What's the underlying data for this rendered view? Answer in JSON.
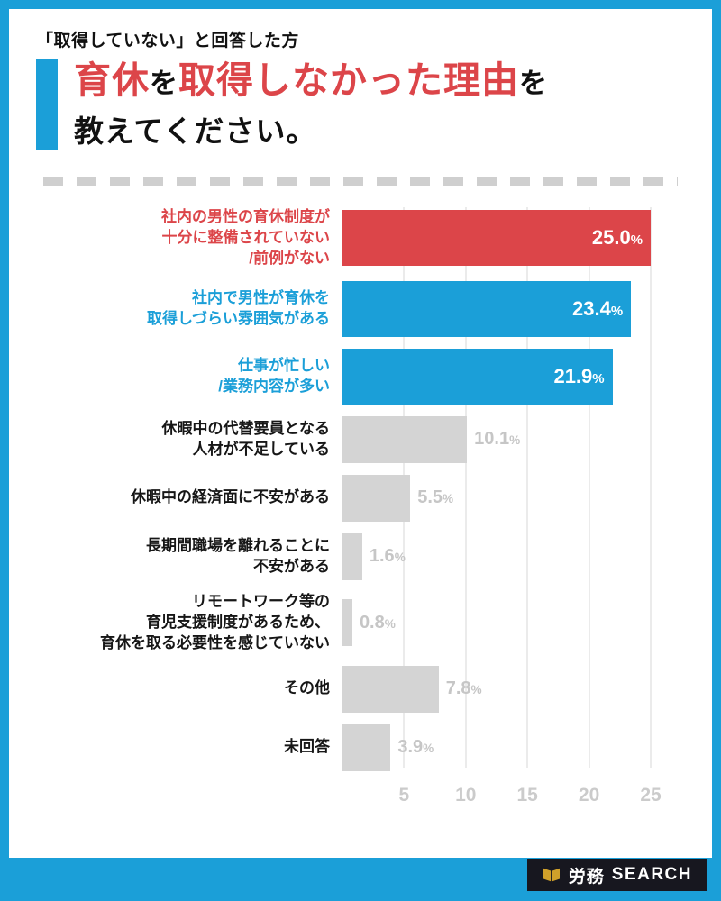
{
  "palette": {
    "frame_blue": "#1b9fd8",
    "bar_red": "#dc4549",
    "bar_blue": "#1b9fd8",
    "bar_gray": "#d4d4d4",
    "muted_text": "#c6c6c6",
    "gridline": "#ebebeb",
    "logo_bg": "#17171f",
    "logo_gold": "#d0a02a"
  },
  "header": {
    "eyebrow": "「取得していない」と回答した方",
    "title_segments": [
      {
        "text": "育休",
        "style": "em"
      },
      {
        "text": "を",
        "style": "particle"
      },
      {
        "text": "取得しなかった理由",
        "style": "em"
      },
      {
        "text": "を",
        "style": "particle"
      }
    ],
    "title_line2": "教えてください。"
  },
  "chart_data": {
    "type": "bar",
    "orientation": "horizontal",
    "title": "育休を取得しなかった理由を教えてください。",
    "xlim": [
      0,
      25
    ],
    "xticks": [
      5,
      10,
      15,
      20,
      25
    ],
    "unit": "%",
    "grid": true,
    "categories": [
      "社内の男性の育休制度が十分に整備されていない/前例がない",
      "社内で男性が育休を取得しづらい雰囲気がある",
      "仕事が忙しい/業務内容が多い",
      "休暇中の代替要員となる人材が不足している",
      "休暇中の経済面に不安がある",
      "長期間職場を離れることに不安がある",
      "リモートワーク等の育児支援制度があるため、育休を取る必要性を感じていない",
      "その他",
      "未回答"
    ],
    "values": [
      25.0,
      23.4,
      21.9,
      10.1,
      5.5,
      1.6,
      0.8,
      7.8,
      3.9
    ],
    "colors": {
      "red": "#dc4549",
      "blue": "#1b9fd8",
      "gray": "#d4d4d4"
    },
    "rows": [
      {
        "label_lines": [
          "社内の男性の育休制度が",
          "十分に整備されていない",
          "/前例がない"
        ],
        "value": 25.0,
        "value_label": "25.0%",
        "color": "red",
        "emphasis": true
      },
      {
        "label_lines": [
          "社内で男性が育休を",
          "取得しづらい雰囲気がある"
        ],
        "value": 23.4,
        "value_label": "23.4%",
        "color": "blue",
        "emphasis": true
      },
      {
        "label_lines": [
          "仕事が忙しい",
          "/業務内容が多い"
        ],
        "value": 21.9,
        "value_label": "21.9%",
        "color": "blue",
        "emphasis": true
      },
      {
        "label_lines": [
          "休暇中の代替要員となる",
          "人材が不足している"
        ],
        "value": 10.1,
        "value_label": "10.1%",
        "color": "gray",
        "emphasis": false
      },
      {
        "label_lines": [
          "休暇中の経済面に不安がある"
        ],
        "value": 5.5,
        "value_label": "5.5%",
        "color": "gray",
        "emphasis": false
      },
      {
        "label_lines": [
          "長期間職場を離れることに",
          "不安がある"
        ],
        "value": 1.6,
        "value_label": "1.6%",
        "color": "gray",
        "emphasis": false
      },
      {
        "label_lines": [
          "リモートワーク等の",
          "育児支援制度があるため、",
          "育休を取る必要性を感じていない"
        ],
        "value": 0.8,
        "value_label": "0.8%",
        "color": "gray",
        "emphasis": false
      },
      {
        "label_lines": [
          "その他"
        ],
        "value": 7.8,
        "value_label": "7.8%",
        "color": "gray",
        "emphasis": false
      },
      {
        "label_lines": [
          "未回答"
        ],
        "value": 3.9,
        "value_label": "3.9%",
        "color": "gray",
        "emphasis": false
      }
    ]
  },
  "footer": {
    "logo_bold": "労務",
    "logo_regular": "SEARCH"
  }
}
